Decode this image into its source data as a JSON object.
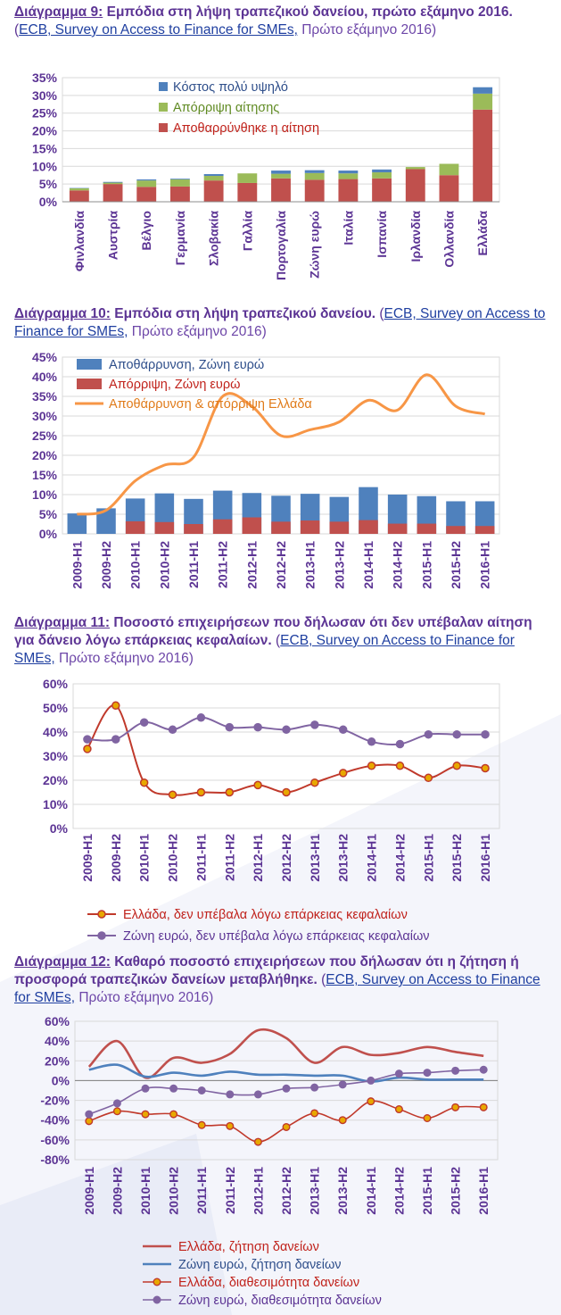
{
  "captions": [
    {
      "num": "Διάγραμμα 9:",
      "text": " Εμπόδια στη λήψη τραπεζικού δανείου, πρώτο εξάμηνο 2016.",
      "src_open": " (",
      "src_link": "ECB, Survey on Access to Finance for SMEs,",
      "src_tail": " Πρώτο εξάμηνο 2016)"
    },
    {
      "num": "Διάγραμμα 10:",
      "text": " Εμπόδια στη λήψη τραπεζικού δανείου.",
      "src_open": " (",
      "src_link": "ECB, Survey on Access to Finance for SMEs,",
      "src_tail": " Πρώτο εξάμηνο 2016)"
    },
    {
      "num": "Διάγραμμα 11:",
      "text": " Ποσοστό επιχειρήσεων που δήλωσαν ότι δεν υπέβαλαν αίτηση για δάνειο λόγω επάρκειας κεφαλαίων.",
      "src_open": " (",
      "src_link": "ECB, Survey on Access to Finance for SMEs,",
      "src_tail": " Πρώτο εξάμηνο 2016)"
    },
    {
      "num": "Διάγραμμα 12:",
      "text": " Καθαρό ποσοστό επιχειρήσεων που δήλωσαν ότι η ζήτηση ή προσφορά τραπεζικών δανείων  μεταβλήθηκε.",
      "src_open": " (",
      "src_link": "ECB, Survey on Access to Finance for SMEs,",
      "src_tail": " Πρώτο εξάμηνο 2016)"
    }
  ],
  "colors": {
    "blue": "#4f81bd",
    "red": "#c0504d",
    "green": "#9bbb59",
    "orange": "#f79646",
    "purple": "#8064a2",
    "redline": "#c0392b",
    "marker": "#e8a800",
    "label": "#5c3494",
    "grid": "#d9d9d9",
    "axis": "#bfbfbf"
  },
  "chart_data": [
    {
      "type": "bar",
      "stacked": true,
      "categories": [
        "Φινλανδία",
        "Αυστρία",
        "Βέλγιο",
        "Γερμανία",
        "Σλοβακία",
        "Γαλλία",
        "Πορτογαλία",
        "Ζώνη ευρώ",
        "Ιταλία",
        "Ισπανία",
        "Ιρλανδία",
        "Ολλανδία",
        "Ελλάδα"
      ],
      "series": [
        {
          "name": "Αποθαρρύνθηκε η αίτηση",
          "color": "#c0504d",
          "values": [
            3.2,
            5.0,
            4.2,
            4.3,
            6.0,
            5.3,
            6.6,
            6.2,
            6.4,
            6.6,
            9.2,
            7.5,
            26.0
          ]
        },
        {
          "name": "Απόρριψη αίτησης",
          "color": "#9bbb59",
          "values": [
            0.6,
            0.4,
            1.8,
            2.0,
            1.3,
            2.7,
            1.3,
            1.9,
            1.6,
            1.7,
            0.6,
            3.2,
            4.5
          ]
        },
        {
          "name": "Κόστος πολύ υψηλό",
          "color": "#4f81bd",
          "values": [
            0.1,
            0.2,
            0.3,
            0.2,
            0.5,
            0.0,
            0.9,
            0.8,
            0.8,
            0.8,
            0.0,
            0.0,
            1.8
          ]
        }
      ],
      "yticks": [
        "0%",
        "5%",
        "10%",
        "15%",
        "20%",
        "25%",
        "30%",
        "35%"
      ],
      "ylim": [
        0,
        35
      ],
      "legend": "top-center"
    },
    {
      "type": "bar+line",
      "categories": [
        "2009-H1",
        "2009-H2",
        "2010-H1",
        "2010-H2",
        "2011-H1",
        "2011-H2",
        "2012-H1",
        "2012-H2",
        "2013-H1",
        "2013-H2",
        "2014-H1",
        "2014-H2",
        "2015-H1",
        "2015-H2",
        "2016-H1"
      ],
      "bars": [
        {
          "name": "Αποθάρρυνση, Ζώνη ευρώ",
          "color": "#4f81bd",
          "values": [
            5.2,
            6.5,
            9.0,
            10.3,
            8.9,
            11.0,
            10.4,
            9.7,
            10.2,
            9.4,
            11.9,
            10.0,
            9.6,
            8.3,
            8.3
          ]
        },
        {
          "name": "Απόρριψη, Ζώνη ευρώ",
          "color": "#c0504d",
          "values": [
            0,
            0,
            3.2,
            3.0,
            2.5,
            3.7,
            4.2,
            3.1,
            3.4,
            3.1,
            3.5,
            2.6,
            2.6,
            2.0,
            2.0
          ]
        }
      ],
      "lines": [
        {
          "name": "Αποθάρρυνση & απόρριψη Ελλάδα",
          "color": "#f79646",
          "values": [
            5.0,
            6.0,
            13.5,
            17.5,
            19.5,
            35.0,
            32.5,
            25.0,
            26.5,
            28.5,
            34.0,
            31.5,
            40.5,
            32.5,
            30.5
          ]
        }
      ],
      "yticks": [
        "0%",
        "5%",
        "10%",
        "15%",
        "20%",
        "25%",
        "30%",
        "35%",
        "40%",
        "45%"
      ],
      "ylim": [
        0,
        45
      ],
      "legend": "top-left"
    },
    {
      "type": "line",
      "categories": [
        "2009-H1",
        "2009-H2",
        "2010-H1",
        "2010-H2",
        "2011-H1",
        "2011-H2",
        "2012-H1",
        "2012-H2",
        "2013-H1",
        "2013-H2",
        "2014-H1",
        "2014-H2",
        "2015-H1",
        "2015-H2",
        "2016-H1"
      ],
      "series": [
        {
          "name": "Ελλάδα, δεν υπέβαλα λόγω επάρκειας κεφαλαίων",
          "color": "#c0392b",
          "marker": "#e8a800",
          "values": [
            33,
            51,
            19,
            14,
            15,
            15,
            18,
            15,
            19,
            23,
            26,
            26,
            21,
            26,
            25
          ]
        },
        {
          "name": "Ζώνη ευρώ, δεν υπέβαλα λόγω επάρκειας κεφαλαίων",
          "color": "#8064a2",
          "marker": "#8064a2",
          "values": [
            37,
            37,
            44,
            41,
            46,
            42,
            42,
            41,
            43,
            41,
            36,
            35,
            39,
            39,
            39
          ]
        }
      ],
      "yticks": [
        "0%",
        "10%",
        "20%",
        "30%",
        "40%",
        "50%",
        "60%"
      ],
      "ylim": [
        0,
        60
      ],
      "legend": "bottom"
    },
    {
      "type": "line",
      "categories": [
        "2009-H1",
        "2009-H2",
        "2010-H1",
        "2010-H2",
        "2011-H1",
        "2011-H2",
        "2012-H1",
        "2012-H2",
        "2013-H1",
        "2013-H2",
        "2014-H1",
        "2014-H2",
        "2015-H1",
        "2015-H2",
        "2016-H1"
      ],
      "series": [
        {
          "name": "Ελλάδα, ζήτηση δανείων",
          "color": "#c0504d",
          "marker": null,
          "values": [
            14,
            40,
            3,
            23,
            18,
            27,
            51,
            43,
            18,
            34,
            26,
            28,
            34,
            29,
            25
          ]
        },
        {
          "name": "Ζώνη ευρώ, ζήτηση δανείων",
          "color": "#4f81bd",
          "marker": null,
          "values": [
            11,
            16,
            4,
            8,
            5,
            9,
            6,
            6,
            5,
            5,
            -1,
            3,
            1,
            1,
            1
          ]
        },
        {
          "name": "Ελλάδα, διαθεσιμότητα δανείων",
          "color": "#c0392b",
          "marker": "#e8a800",
          "values": [
            -41,
            -31,
            -34,
            -34,
            -45,
            -46,
            -62,
            -47,
            -33,
            -40,
            -21,
            -29,
            -38,
            -27,
            -27
          ]
        },
        {
          "name": "Ζώνη ευρώ, διαθεσιμότητα δανείων",
          "color": "#8064a2",
          "marker": "#8064a2",
          "values": [
            -34,
            -23,
            -8,
            -8,
            -10,
            -14,
            -14,
            -8,
            -7,
            -4,
            0,
            7,
            8,
            10,
            11
          ]
        }
      ],
      "yticks": [
        "-80%",
        "-60%",
        "-40%",
        "-20%",
        "0%",
        "20%",
        "40%",
        "60%"
      ],
      "ylim": [
        -80,
        60
      ],
      "legend": "bottom"
    }
  ]
}
